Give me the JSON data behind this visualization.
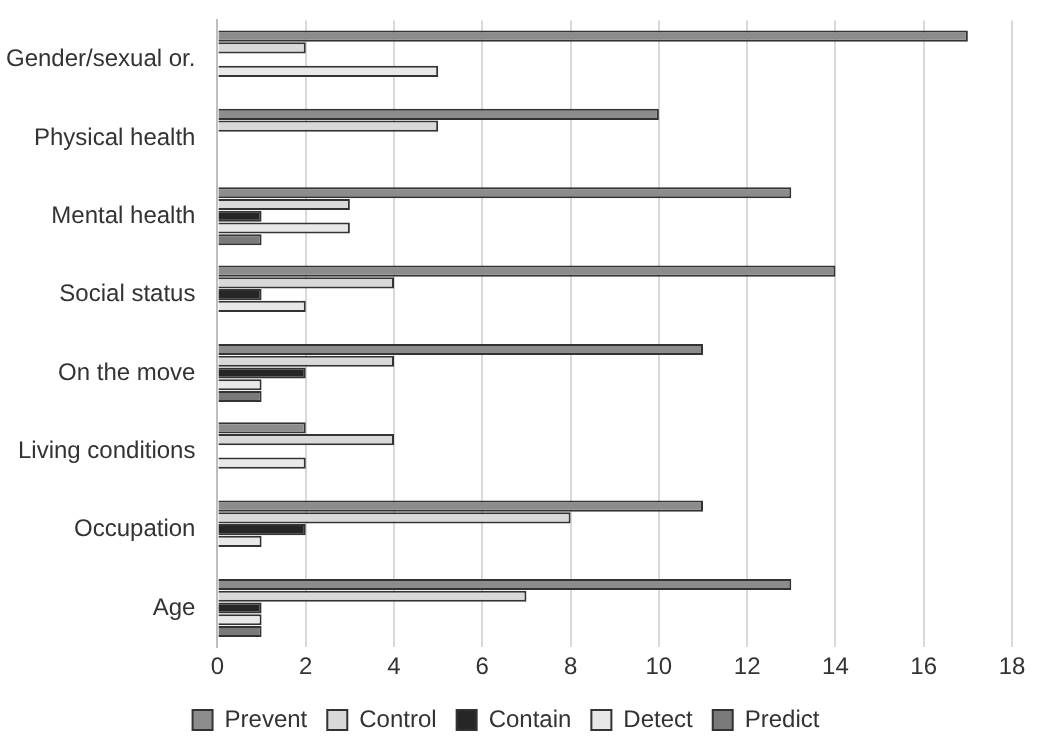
{
  "chart_data": {
    "type": "bar",
    "orientation": "horizontal",
    "categories": [
      "Gender/sexual or.",
      "Physical health",
      "Mental health",
      "Social status",
      "On the move",
      "Living conditions",
      "Occupation",
      "Age"
    ],
    "series": [
      {
        "name": "Prevent",
        "color": "#8c8c8c",
        "values": [
          17,
          10,
          13,
          14,
          11,
          2,
          11,
          13
        ]
      },
      {
        "name": "Control",
        "color": "#d9d9d9",
        "values": [
          2,
          5,
          3,
          4,
          4,
          4,
          8,
          7
        ]
      },
      {
        "name": "Contain",
        "color": "#262626",
        "values": [
          null,
          null,
          1,
          1,
          2,
          null,
          2,
          1
        ]
      },
      {
        "name": "Detect",
        "color": "#e8e8e8",
        "values": [
          5,
          null,
          3,
          2,
          1,
          2,
          1,
          1
        ]
      },
      {
        "name": "Predict",
        "color": "#7a7a7a",
        "values": [
          null,
          null,
          1,
          null,
          1,
          null,
          null,
          1
        ]
      }
    ],
    "xlim": [
      0,
      18
    ],
    "xticks": [
      0,
      2,
      4,
      6,
      8,
      10,
      12,
      14,
      16,
      18
    ],
    "grid": "x",
    "legend": "bottom"
  }
}
